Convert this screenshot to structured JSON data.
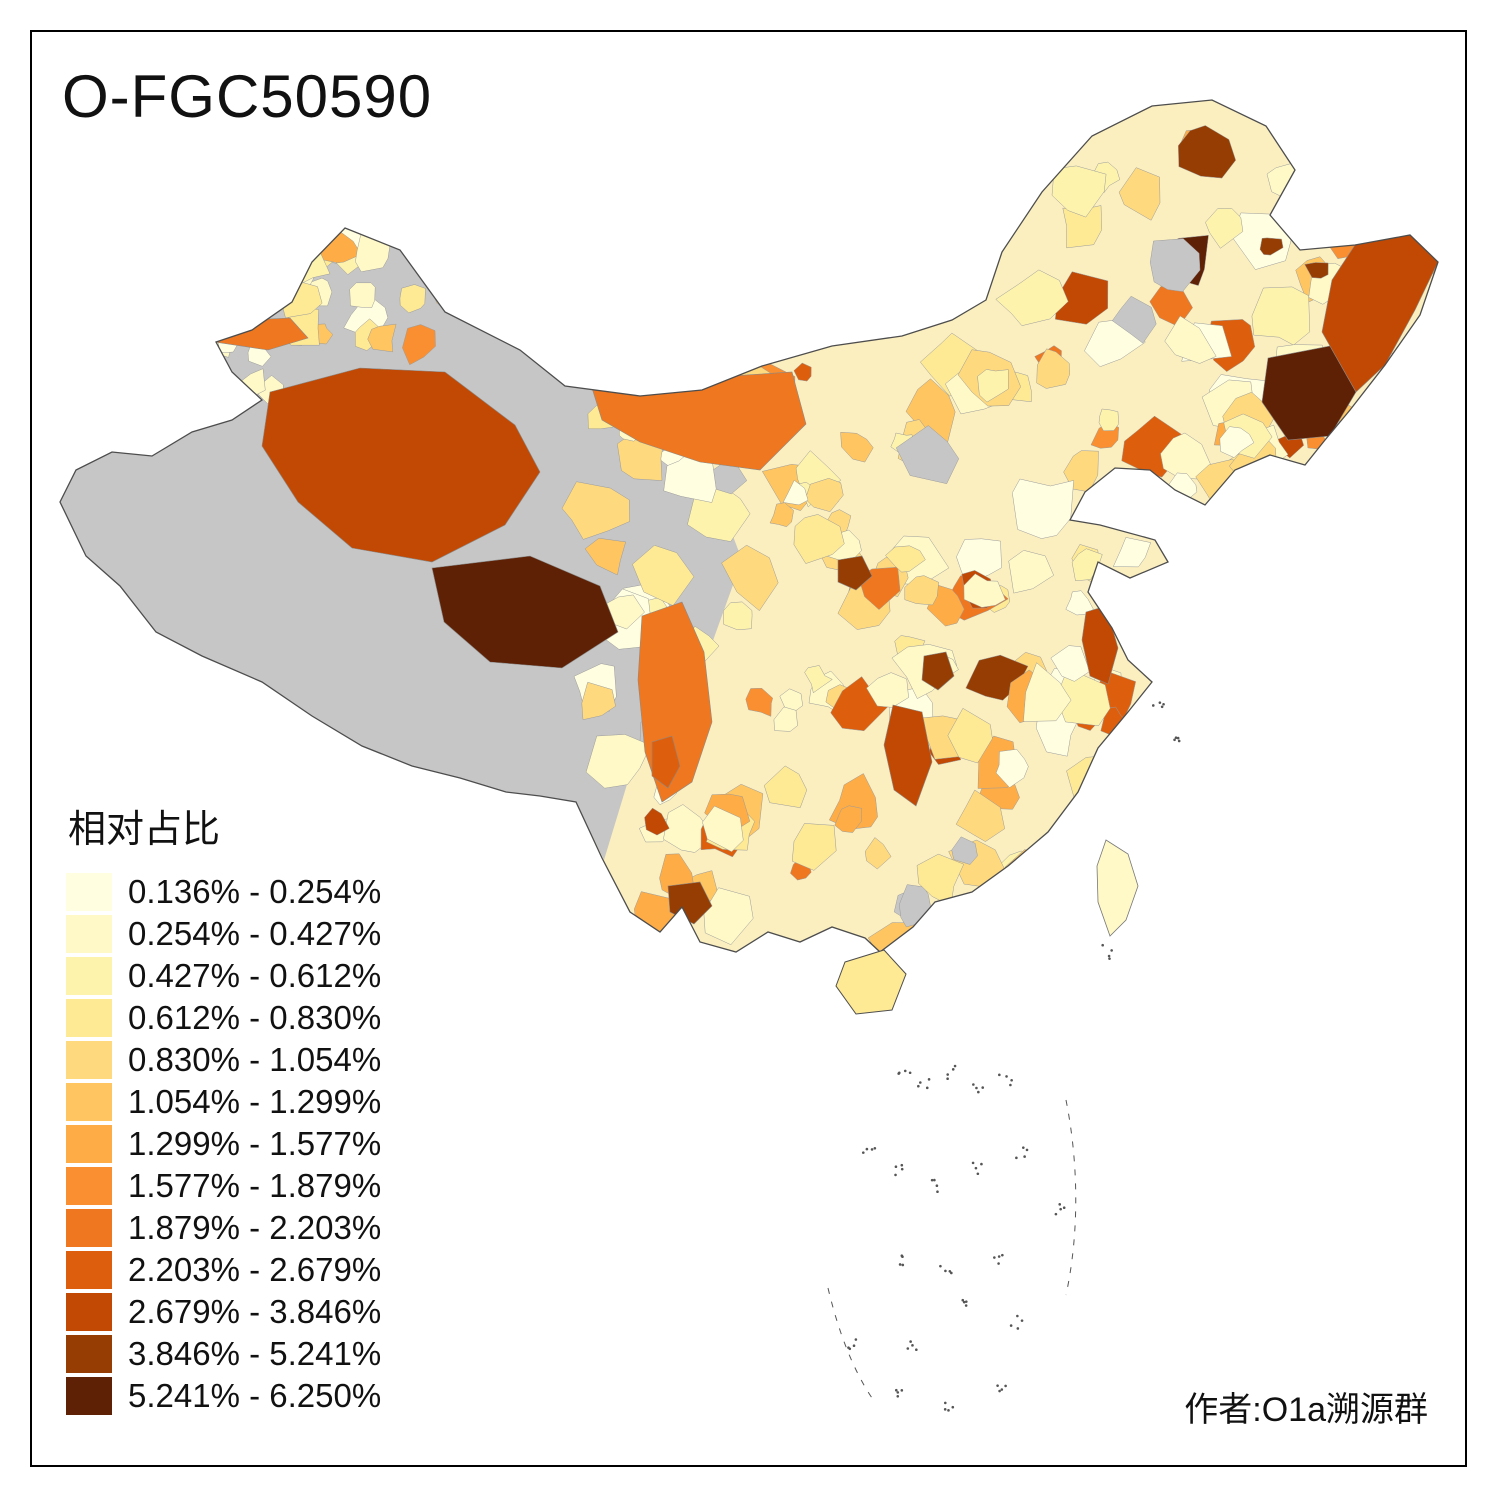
{
  "title": "O-FGC50590",
  "legend": {
    "title": "相对占比",
    "no_data_color": "#C6C6C6",
    "items": [
      {
        "label": "0.136% - 0.254%",
        "color": "#FFFEE0"
      },
      {
        "label": "0.254% - 0.427%",
        "color": "#FFF9C7"
      },
      {
        "label": "0.427% - 0.612%",
        "color": "#FEF3AD"
      },
      {
        "label": "0.612% - 0.830%",
        "color": "#FEE995"
      },
      {
        "label": "0.830% - 1.054%",
        "color": "#FED97E"
      },
      {
        "label": "1.054% - 1.299%",
        "color": "#FEC561"
      },
      {
        "label": "1.299% - 1.577%",
        "color": "#FEAC46"
      },
      {
        "label": "1.577% - 1.879%",
        "color": "#F98F30"
      },
      {
        "label": "1.879% - 2.203%",
        "color": "#EF771F"
      },
      {
        "label": "2.203% - 2.679%",
        "color": "#DD5F0D"
      },
      {
        "label": "2.679% - 3.846%",
        "color": "#C24903"
      },
      {
        "label": "3.846% - 5.241%",
        "color": "#953D03"
      },
      {
        "label": "5.241% - 6.250%",
        "color": "#5E2105"
      }
    ]
  },
  "attribution": "作者:O1a溯源群",
  "map": {
    "region": "China choropleth by prefecture",
    "outline_color": "#4d4d4d",
    "border_stroke": "#9b9b9b",
    "base_color": "#FBEFC0",
    "sea_mark_color": "#555555"
  }
}
